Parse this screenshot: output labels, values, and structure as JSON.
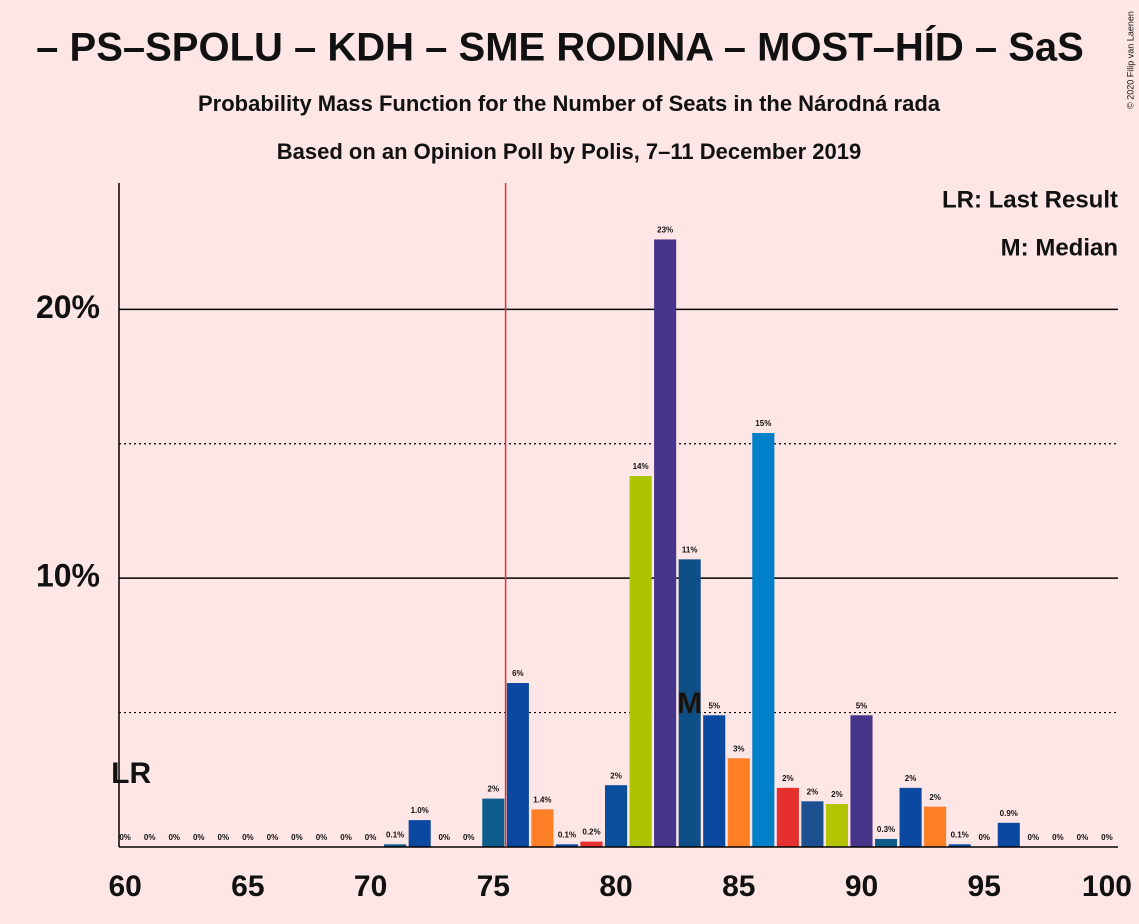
{
  "chart_data": {
    "type": "bar",
    "title": "– PS–SPOLU – KDH – SME RODINA – MOST–HÍD – SaS",
    "subtitle": "Probability Mass Function for the Number of Seats in the Národná rada",
    "subtitle2": "Based on an Opinion Poll by Polis, 7–11 December 2019",
    "copyright": "© 2020 Filip van Laenen",
    "legend": [
      "LR: Last Result",
      "M: Median"
    ],
    "last_result_label": "LR",
    "median_label": "M",
    "last_result_line": 75.5,
    "median": 83,
    "x": [
      60,
      61,
      62,
      63,
      64,
      65,
      66,
      67,
      68,
      69,
      70,
      71,
      72,
      73,
      74,
      75,
      76,
      77,
      78,
      79,
      80,
      81,
      82,
      83,
      84,
      85,
      86,
      87,
      88,
      89,
      90,
      91,
      92,
      93,
      94,
      95,
      96,
      97,
      98,
      99,
      100
    ],
    "values": [
      0,
      0,
      0,
      0,
      0,
      0,
      0,
      0,
      0,
      0,
      0,
      0.1,
      1.0,
      0,
      0,
      1.8,
      6.1,
      1.4,
      0.1,
      0.2,
      2.3,
      13.8,
      22.6,
      10.7,
      4.9,
      3.3,
      15.4,
      2.2,
      1.7,
      1.6,
      4.9,
      0.3,
      2.2,
      1.5,
      0.1,
      0,
      0.9,
      0,
      0,
      0,
      0
    ],
    "value_labels": [
      "0%",
      "0%",
      "0%",
      "0%",
      "0%",
      "0%",
      "0%",
      "0%",
      "0%",
      "0%",
      "0%",
      "0.1%",
      "1.0%",
      "0%",
      "0%",
      "2%",
      "6%",
      "1.4%",
      "0.1%",
      "0.2%",
      "2%",
      "14%",
      "23%",
      "11%",
      "5%",
      "3%",
      "15%",
      "2%",
      "2%",
      "2%",
      "5%",
      "0.3%",
      "2%",
      "2%",
      "0.1%",
      "0%",
      "0.9%",
      "0%",
      "0%",
      "0%",
      "0%"
    ],
    "colors": [
      "#0b48a0",
      "#0b48a0",
      "#0b48a0",
      "#0b48a0",
      "#0b48a0",
      "#0b48a0",
      "#0b48a0",
      "#0b48a0",
      "#0b48a0",
      "#0b48a0",
      "#0b48a0",
      "#0d5c8c",
      "#0b48a0",
      "#0b48a0",
      "#0b48a0",
      "#0d5c8c",
      "#0b48a0",
      "#ff7f27",
      "#0b48a0",
      "#e8302e",
      "#0b4f9c",
      "#adc400",
      "#47358c",
      "#0d4f86",
      "#0b48a0",
      "#ff7f27",
      "#0080c8",
      "#e63030",
      "#1b4f8f",
      "#b5c400",
      "#47358c",
      "#0d5c8c",
      "#0b48a0",
      "#ff7f27",
      "#0b48a0",
      "#0b48a0",
      "#0b48a0",
      "#0b48a0",
      "#0b48a0",
      "#0b48a0",
      "#0b48a0"
    ],
    "xlim": [
      59.75,
      100.45
    ],
    "xticks": [
      60,
      65,
      70,
      75,
      80,
      85,
      90,
      95,
      100
    ],
    "ylim": [
      0,
      24.7
    ],
    "yticks": [
      {
        "value": 10,
        "label": "10%"
      },
      {
        "value": 20,
        "label": "20%"
      }
    ],
    "minor_gridlines": [
      5,
      15
    ],
    "grid": true
  }
}
